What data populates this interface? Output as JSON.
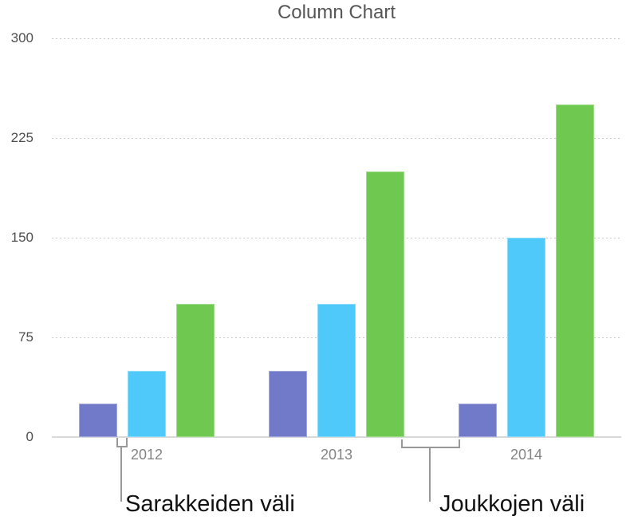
{
  "chart_data": {
    "type": "bar",
    "title": "Column Chart",
    "categories": [
      "2012",
      "2013",
      "2014"
    ],
    "series": [
      {
        "name": "purple",
        "color": "#707AC8",
        "values": [
          25,
          50,
          25
        ]
      },
      {
        "name": "blue",
        "color": "#4FC9FA",
        "values": [
          50,
          100,
          150
        ]
      },
      {
        "name": "green",
        "color": "#6FC84F",
        "values": [
          100,
          200,
          250
        ]
      }
    ],
    "xlabel": "",
    "ylabel": "",
    "ylim": [
      0,
      300
    ],
    "y_ticks": [
      0,
      75,
      150,
      225,
      300
    ],
    "grid": "horizontal dotted",
    "legend_position": "none",
    "colors": {
      "title_text": "#565656",
      "y_tick_text": "#4E4E4E",
      "x_tick_text": "#848484",
      "gridline": "#C9C9C9",
      "axis_line": "#D8D8D8",
      "bracket": "#989898",
      "annotation_text": "#111111",
      "background": "#FFFFFF"
    }
  },
  "annotations": [
    {
      "label": "Sarakkeiden väli",
      "points_at": "gap between columns inside the 2012 cluster"
    },
    {
      "label": "Joukkojen väli",
      "points_at": "gap between the 2013 and 2014 clusters"
    }
  ]
}
